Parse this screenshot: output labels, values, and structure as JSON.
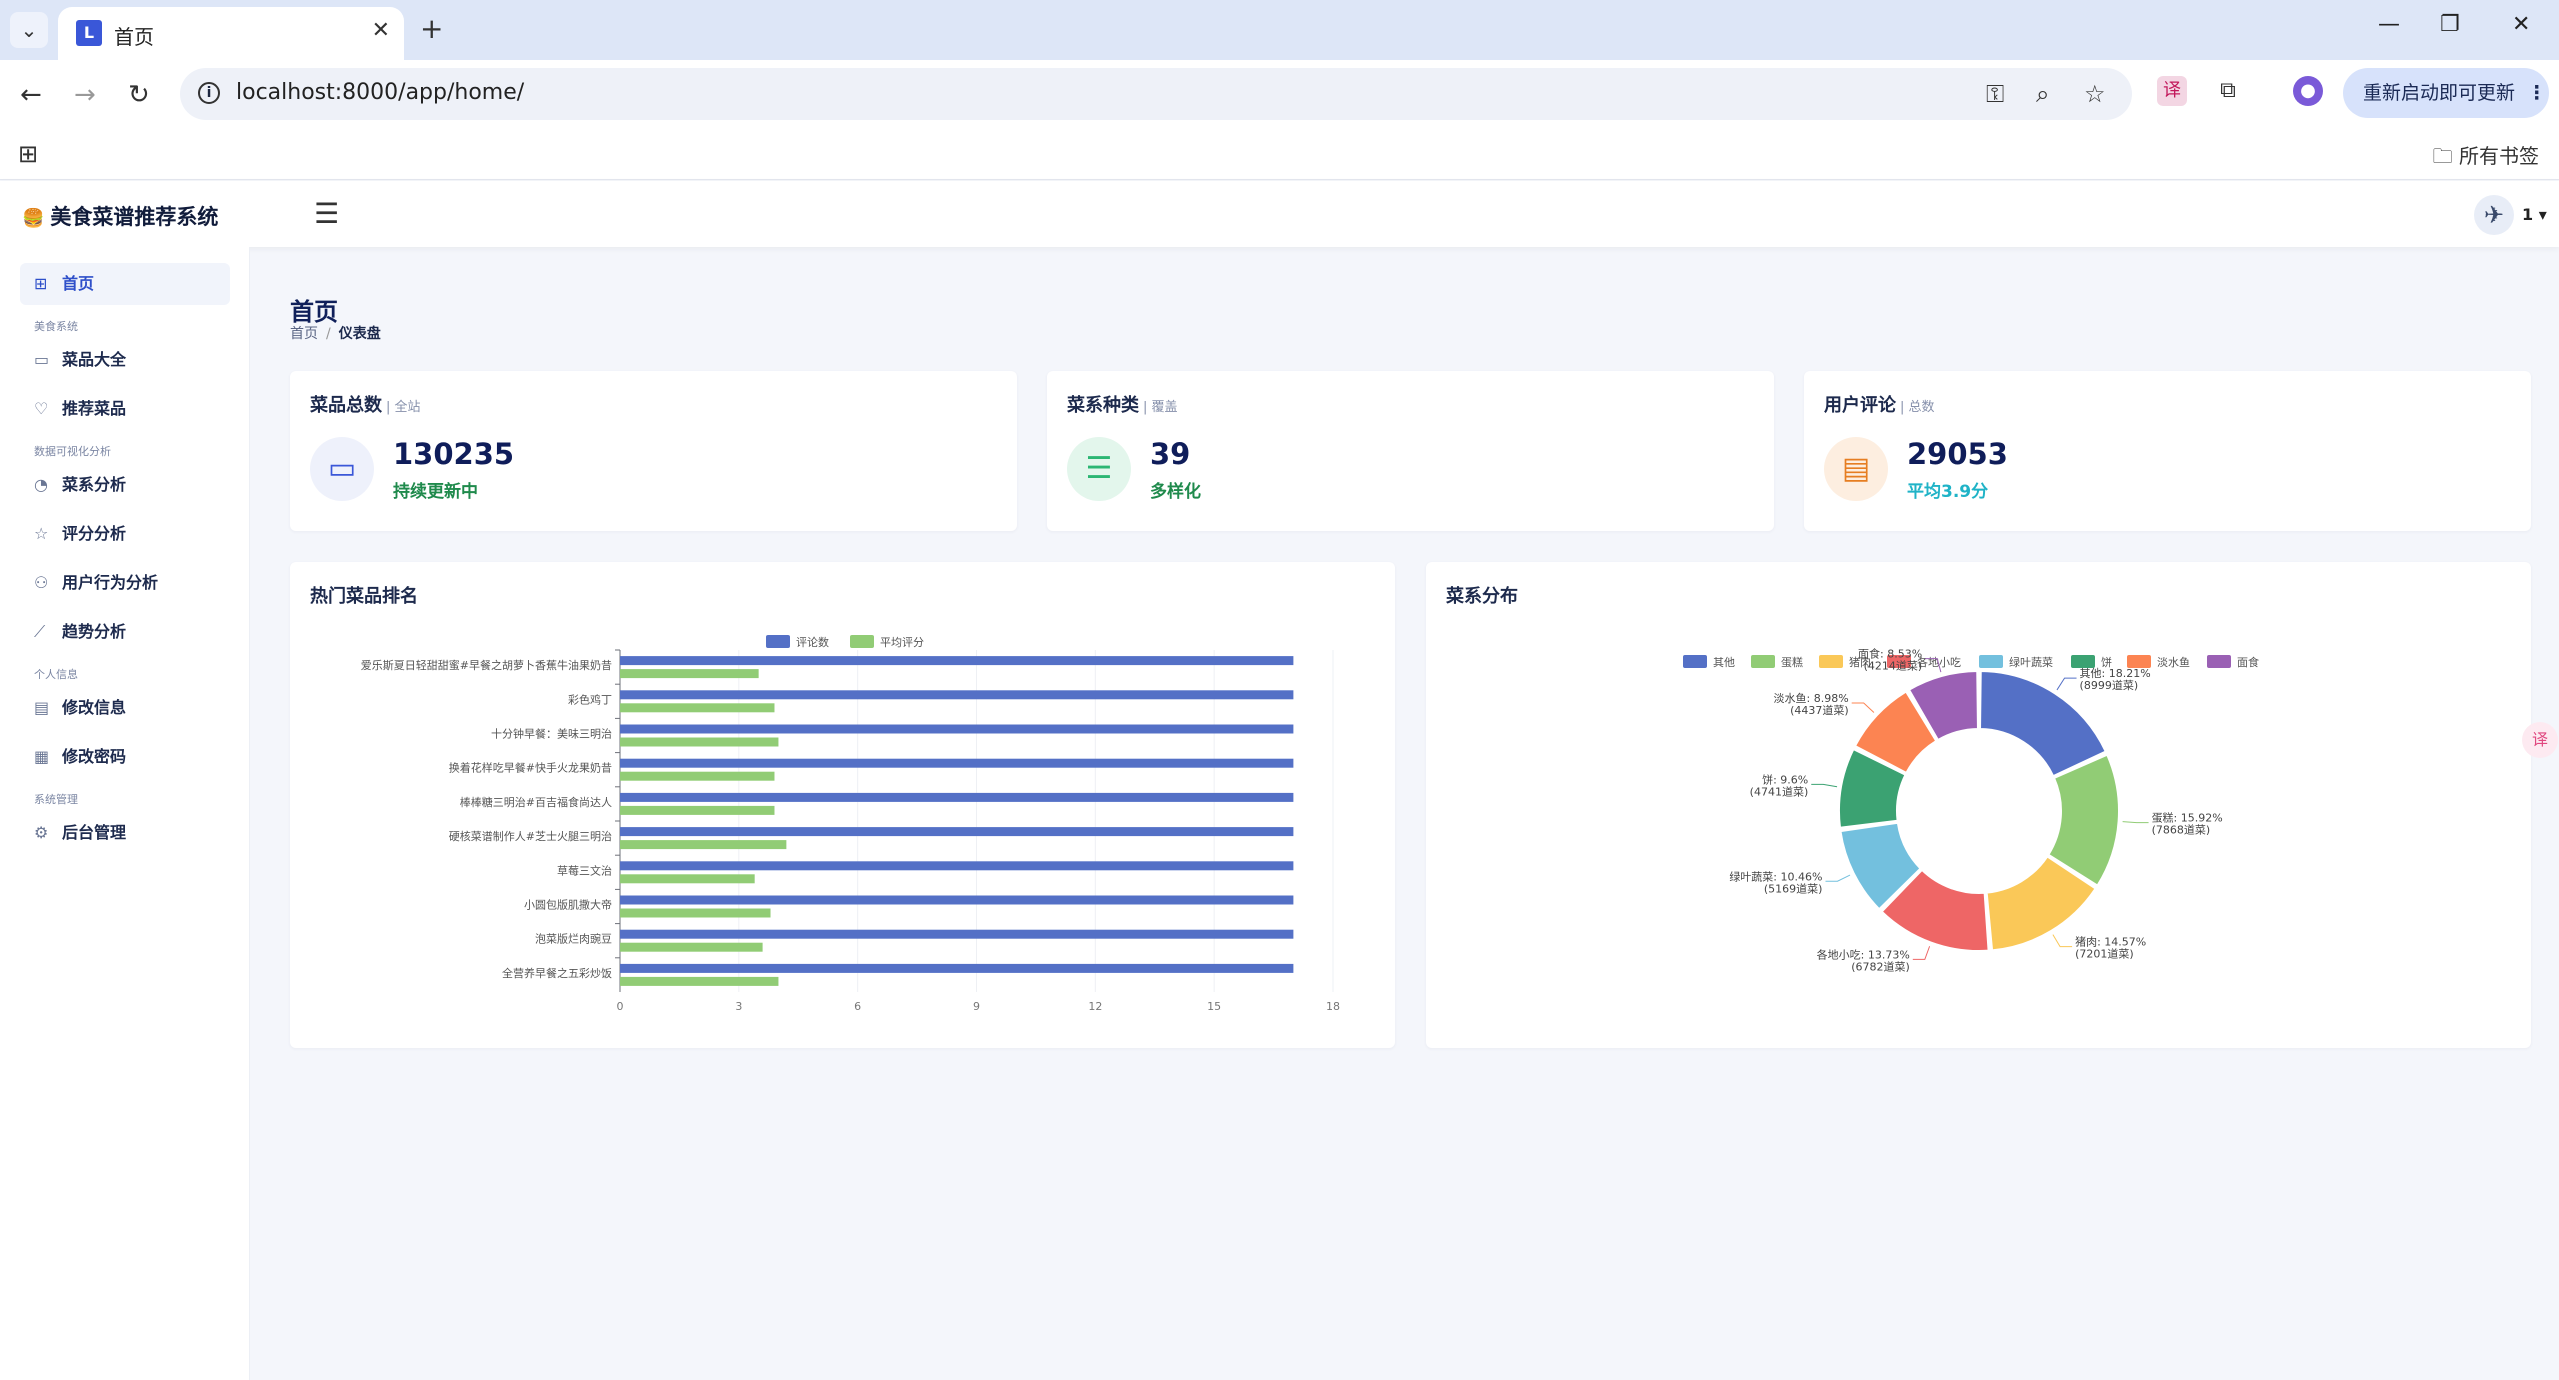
{
  "browser": {
    "tab_title": "首页",
    "url": "localhost:8000/app/home/",
    "update_label": "重新启动即可更新",
    "bookmarks_label": "所有书签"
  },
  "app": {
    "brand": "美食菜谱推荐系统",
    "user_name": "1"
  },
  "sidebar": {
    "items": [
      {
        "label": "首页",
        "icon": "dashboard-icon",
        "active": true
      },
      {
        "group": "美食系统"
      },
      {
        "label": "菜品大全",
        "icon": "wallet-icon"
      },
      {
        "label": "推荐菜品",
        "icon": "heart-icon"
      },
      {
        "group": "数据可视化分析"
      },
      {
        "label": "菜系分析",
        "icon": "pie-icon"
      },
      {
        "label": "评分分析",
        "icon": "star-icon"
      },
      {
        "label": "用户行为分析",
        "icon": "users-icon"
      },
      {
        "label": "趋势分析",
        "icon": "trend-icon"
      },
      {
        "group": "个人信息"
      },
      {
        "label": "修改信息",
        "icon": "edit-icon"
      },
      {
        "label": "修改密码",
        "icon": "lock-icon"
      },
      {
        "group": "系统管理"
      },
      {
        "label": "后台管理",
        "icon": "gear-icon"
      }
    ]
  },
  "page": {
    "title": "首页",
    "breadcrumb": [
      "首页",
      "仪表盘"
    ]
  },
  "stats": [
    {
      "title": "菜品总数",
      "sub": "全站",
      "value": "130235",
      "note": "持续更新中",
      "note_color": "#1f8a4c",
      "icon": "layers-icon",
      "icon_bg": "#eef1fb",
      "icon_color": "#3a57d8"
    },
    {
      "title": "菜系种类",
      "sub": "覆盖",
      "value": "39",
      "note": "多样化",
      "note_color": "#1f8a4c",
      "icon": "list-icon",
      "icon_bg": "#e3f6ec",
      "icon_color": "#2bb673"
    },
    {
      "title": "用户评论",
      "sub": "总数",
      "value": "29053",
      "note": "平均3.9分",
      "note_color": "#1fb3c7",
      "icon": "comment-icon",
      "icon_bg": "#fdeee0",
      "icon_color": "#e67e22"
    }
  ],
  "charts": {
    "bar_title": "热门菜品排名",
    "pie_title": "菜系分布"
  },
  "chart_data": [
    {
      "type": "bar",
      "orientation": "horizontal",
      "categories": [
        "爱乐斯夏日轻甜甜蜜#早餐之胡萝卜香蕉牛油果奶昔",
        "彩色鸡丁",
        "十分钟早餐：美味三明治",
        "换着花样吃早餐#快手火龙果奶昔",
        "棒棒糖三明治#百吉福食尚达人",
        "硬核菜谱制作人#芝士火腿三明治",
        "草莓三文治",
        "小圆包版肌撒大帝",
        "泡菜版烂肉豌豆",
        "全营养早餐之五彩炒饭"
      ],
      "series": [
        {
          "name": "评论数",
          "values": [
            17,
            17,
            17,
            17,
            17,
            17,
            17,
            17,
            17,
            17
          ],
          "color": "#5470c6"
        },
        {
          "name": "平均评分",
          "values": [
            3.5,
            3.9,
            4.0,
            3.9,
            3.9,
            4.2,
            3.4,
            3.8,
            3.6,
            4.0
          ],
          "color": "#91cc75"
        }
      ],
      "xlim": [
        0,
        18
      ],
      "xticks": [
        0,
        3,
        6,
        9,
        12,
        15,
        18
      ],
      "legend_position": "top-center"
    },
    {
      "type": "pie",
      "donut": true,
      "slices": [
        {
          "name": "其他",
          "value": 8999,
          "label": "其他: 18.21%",
          "sublabel": "(8999道菜)",
          "color": "#5470c6"
        },
        {
          "name": "蛋糕",
          "value": 7868,
          "label": "蛋糕: 15.92%",
          "sublabel": "(7868道菜)",
          "color": "#91cc75"
        },
        {
          "name": "猪肉",
          "value": 7201,
          "label": "猪肉: 14.57%",
          "sublabel": "(7201道菜)",
          "color": "#fac858"
        },
        {
          "name": "各地小吃",
          "value": 6782,
          "label": "各地小吃: 13.73%",
          "sublabel": "(6782道菜)",
          "color": "#ee6666"
        },
        {
          "name": "绿叶蔬菜",
          "value": 5169,
          "label": "绿叶蔬菜: 10.46%",
          "sublabel": "(5169道菜)",
          "color": "#73c0de"
        },
        {
          "name": "饼",
          "value": 4741,
          "label": "饼: 9.6%",
          "sublabel": "(4741道菜)",
          "color": "#3ba272"
        },
        {
          "name": "淡水鱼",
          "value": 4437,
          "label": "淡水鱼: 8.98%",
          "sublabel": "(4437道菜)",
          "color": "#fc8452"
        },
        {
          "name": "面食",
          "value": 4214,
          "label": "面食: 8.53%",
          "sublabel": "(4214道菜)",
          "color": "#9a60b4"
        }
      ],
      "legend_position": "top-center"
    }
  ]
}
